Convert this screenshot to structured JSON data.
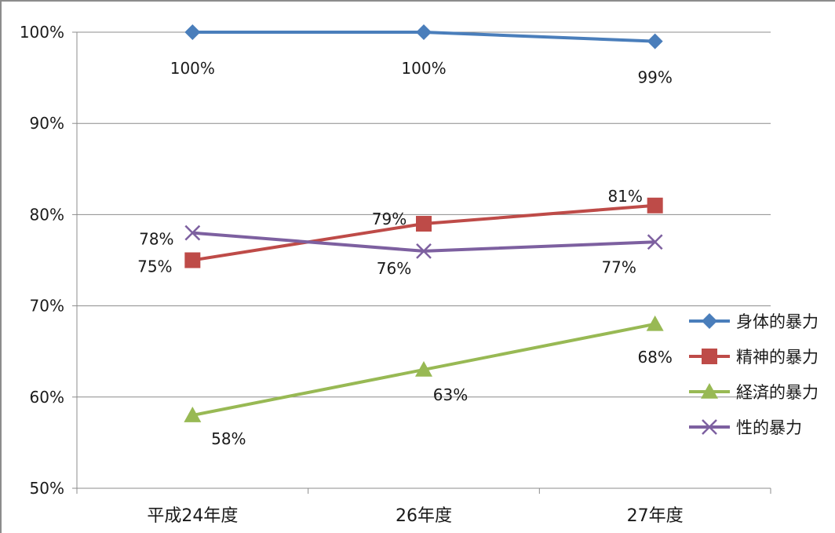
{
  "chart_data": {
    "type": "line",
    "title": "",
    "xlabel": "",
    "ylabel": "",
    "categories": [
      "平成24年度",
      "26年度",
      "27年度"
    ],
    "ylim": [
      50,
      100
    ],
    "yticks": [
      50,
      60,
      70,
      80,
      90,
      100
    ],
    "ytick_labels": [
      "50%",
      "60%",
      "70%",
      "80%",
      "90%",
      "100%"
    ],
    "grid": true,
    "legend_position": "right",
    "series": [
      {
        "name": "身体的暴力",
        "values": [
          100,
          100,
          99
        ],
        "labels": [
          "100%",
          "100%",
          "99%"
        ],
        "color": "#4a7ebb",
        "marker": "diamond"
      },
      {
        "name": "精神的暴力",
        "values": [
          75,
          79,
          81
        ],
        "labels": [
          "75%",
          "79%",
          "81%"
        ],
        "color": "#be4b48",
        "marker": "square"
      },
      {
        "name": "経済的暴力",
        "values": [
          58,
          63,
          68
        ],
        "labels": [
          "58%",
          "63%",
          "68%"
        ],
        "color": "#98b954",
        "marker": "triangle"
      },
      {
        "name": "性的暴力",
        "values": [
          78,
          76,
          77
        ],
        "labels": [
          "78%",
          "76%",
          "77%"
        ],
        "color": "#7d60a0",
        "marker": "x"
      }
    ]
  }
}
